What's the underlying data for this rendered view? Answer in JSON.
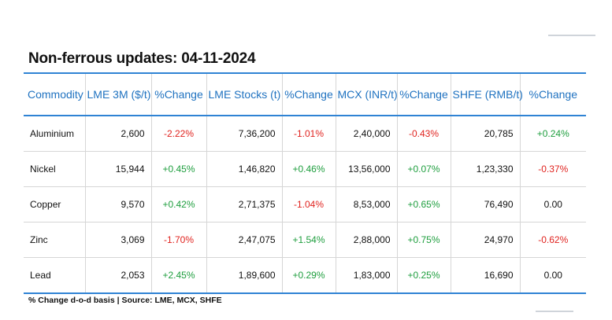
{
  "title": "Non-ferrous updates: 04-11-2024",
  "table": {
    "headers": [
      "Commodity",
      "LME 3M ($/t)",
      "%Change",
      "LME Stocks (t)",
      "%Change",
      "MCX (INR/t)",
      "%Change",
      "SHFE (RMB/t)",
      "%Change"
    ],
    "rows": [
      {
        "commodity": "Aluminium",
        "lme3m": "2,600",
        "lme3m_chg": "-2.22%",
        "lme_stocks": "7,36,200",
        "lme_stocks_chg": "-1.01%",
        "mcx": "2,40,000",
        "mcx_chg": "-0.43%",
        "shfe": "20,785",
        "shfe_chg": "+0.24%"
      },
      {
        "commodity": "Nickel",
        "lme3m": "15,944",
        "lme3m_chg": "+0.45%",
        "lme_stocks": "1,46,820",
        "lme_stocks_chg": "+0.46%",
        "mcx": "13,56,000",
        "mcx_chg": "+0.07%",
        "shfe": "1,23,330",
        "shfe_chg": "-0.37%"
      },
      {
        "commodity": "Copper",
        "lme3m": "9,570",
        "lme3m_chg": "+0.42%",
        "lme_stocks": "2,71,375",
        "lme_stocks_chg": "-1.04%",
        "mcx": "8,53,000",
        "mcx_chg": "+0.65%",
        "shfe": "76,490",
        "shfe_chg": "0.00"
      },
      {
        "commodity": "Zinc",
        "lme3m": "3,069",
        "lme3m_chg": "-1.70%",
        "lme_stocks": "2,47,075",
        "lme_stocks_chg": "+1.54%",
        "mcx": "2,88,000",
        "mcx_chg": "+0.75%",
        "shfe": "24,970",
        "shfe_chg": "-0.62%"
      },
      {
        "commodity": "Lead",
        "lme3m": "2,053",
        "lme3m_chg": "+2.45%",
        "lme_stocks": "1,89,600",
        "lme_stocks_chg": "+0.29%",
        "mcx": "1,83,000",
        "mcx_chg": "+0.25%",
        "shfe": "16,690",
        "shfe_chg": "0.00"
      }
    ]
  },
  "colors": {
    "accent": "#2f83d4",
    "header_text": "#1f72c0",
    "negative": "#e0231f",
    "positive": "#1e9e3e"
  },
  "footnote": "% Change d-o-d basis | Source: LME, MCX, SHFE"
}
